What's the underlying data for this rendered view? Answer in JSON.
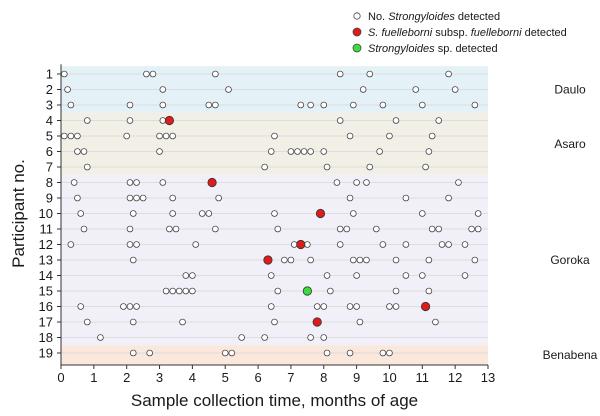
{
  "chart_data": {
    "type": "scatter",
    "xlabel": "Sample collection time, months of age",
    "ylabel": "Participant no.",
    "xlim": [
      0,
      13
    ],
    "x_ticks": [
      0,
      1,
      2,
      3,
      4,
      5,
      6,
      7,
      8,
      9,
      10,
      11,
      12,
      13
    ],
    "participants": [
      1,
      2,
      3,
      4,
      5,
      6,
      7,
      8,
      9,
      10,
      11,
      12,
      13,
      14,
      15,
      16,
      17,
      18,
      19
    ],
    "legend": [
      {
        "key": "none",
        "prefix": "No. ",
        "italic": "Strongyloides",
        "suffix": " detected",
        "color": "#ffffff"
      },
      {
        "key": "fuelleborni",
        "prefix": "",
        "italic": "S. fuelleborni",
        "suffix": " subsp. ",
        "italic2": "fuelleborni",
        "suffix2": " detected",
        "color": "#e01b1b"
      },
      {
        "key": "sp",
        "prefix": "",
        "italic": "Strongyloides",
        "suffix": " sp. detected",
        "color": "#3ddc3d"
      }
    ],
    "groups": [
      {
        "name": "Daulo",
        "from": 1,
        "to": 3,
        "color": "#e4f1f6"
      },
      {
        "name": "Asaro",
        "from": 4,
        "to": 7,
        "color": "#f2efe6"
      },
      {
        "name": "Goroka",
        "from": 8,
        "to": 18,
        "color": "#f1eff7"
      },
      {
        "name": "Benabena",
        "from": 19,
        "to": 19,
        "color": "#fbe8dc"
      }
    ],
    "series": [
      {
        "participant": 1,
        "none": [
          0.1,
          2.6,
          2.8,
          4.7,
          8.5,
          9.4,
          11.8
        ],
        "fuelleborni": [],
        "sp": []
      },
      {
        "participant": 2,
        "none": [
          0.2,
          3.1,
          5.1,
          9.2,
          10.8,
          12.0
        ],
        "fuelleborni": [],
        "sp": []
      },
      {
        "participant": 3,
        "none": [
          0.3,
          2.1,
          3.1,
          4.5,
          4.7,
          7.3,
          7.6,
          8.0,
          8.9,
          9.8,
          11.0,
          12.6
        ],
        "fuelleborni": [],
        "sp": []
      },
      {
        "participant": 4,
        "none": [
          0.8,
          2.1,
          3.1,
          8.5,
          10.2,
          11.5
        ],
        "fuelleborni": [
          3.3
        ],
        "sp": []
      },
      {
        "participant": 5,
        "none": [
          0.1,
          0.3,
          0.5,
          2.0,
          3.0,
          3.2,
          3.4,
          6.5,
          8.8,
          10.0,
          11.3
        ],
        "fuelleborni": [],
        "sp": []
      },
      {
        "participant": 6,
        "none": [
          0.5,
          0.7,
          3.0,
          6.4,
          7.0,
          7.2,
          7.4,
          7.6,
          8.0,
          9.7,
          11.2
        ],
        "fuelleborni": [],
        "sp": []
      },
      {
        "participant": 7,
        "none": [
          0.8,
          6.2,
          8.1,
          9.4,
          11.1
        ],
        "fuelleborni": [],
        "sp": []
      },
      {
        "participant": 8,
        "none": [
          0.4,
          2.1,
          2.3,
          3.1,
          8.4,
          9.0,
          9.3,
          12.1
        ],
        "fuelleborni": [
          4.6
        ],
        "sp": []
      },
      {
        "participant": 9,
        "none": [
          0.5,
          2.1,
          2.3,
          2.5,
          3.4,
          4.8,
          8.8,
          10.5,
          11.8
        ],
        "fuelleborni": [],
        "sp": []
      },
      {
        "participant": 10,
        "none": [
          0.6,
          2.2,
          3.4,
          4.3,
          4.5,
          6.5,
          8.9,
          11.0,
          12.7
        ],
        "fuelleborni": [
          7.9
        ],
        "sp": []
      },
      {
        "participant": 11,
        "none": [
          0.7,
          2.1,
          3.3,
          3.5,
          4.7,
          6.6,
          8.5,
          8.7,
          9.6,
          11.3,
          11.5,
          12.5,
          12.7
        ],
        "fuelleborni": [],
        "sp": []
      },
      {
        "participant": 12,
        "none": [
          0.3,
          2.1,
          2.3,
          4.1,
          7.1,
          7.5,
          8.5,
          9.8,
          10.5,
          11.6,
          11.8,
          12.3
        ],
        "fuelleborni": [
          7.3
        ],
        "sp": []
      },
      {
        "participant": 13,
        "none": [
          2.2,
          6.8,
          7.0,
          7.6,
          8.9,
          9.1,
          9.3,
          10.2,
          11.2,
          12.6
        ],
        "fuelleborni": [
          6.3
        ],
        "sp": []
      },
      {
        "participant": 14,
        "none": [
          3.8,
          4.0,
          6.4,
          8.1,
          9.0,
          10.5,
          11.0,
          12.3
        ],
        "fuelleborni": [],
        "sp": []
      },
      {
        "participant": 15,
        "none": [
          3.2,
          3.4,
          3.6,
          3.8,
          4.0,
          6.6,
          8.2,
          10.2,
          11.2
        ],
        "fuelleborni": [],
        "sp": [
          7.5
        ]
      },
      {
        "participant": 16,
        "none": [
          0.6,
          1.9,
          2.1,
          2.3,
          6.4,
          7.8,
          8.0,
          8.8,
          9.0,
          10.0,
          10.2
        ],
        "fuelleborni": [
          11.1
        ],
        "sp": []
      },
      {
        "participant": 17,
        "none": [
          0.8,
          2.2,
          3.7,
          6.5,
          9.1,
          11.4
        ],
        "fuelleborni": [
          7.8
        ],
        "sp": []
      },
      {
        "participant": 18,
        "none": [
          1.2,
          5.5,
          6.2,
          7.6,
          8.0
        ],
        "fuelleborni": [],
        "sp": []
      },
      {
        "participant": 19,
        "none": [
          2.2,
          2.7,
          5.0,
          5.2,
          8.1,
          8.8,
          9.8,
          10.0
        ],
        "fuelleborni": [],
        "sp": []
      }
    ]
  }
}
